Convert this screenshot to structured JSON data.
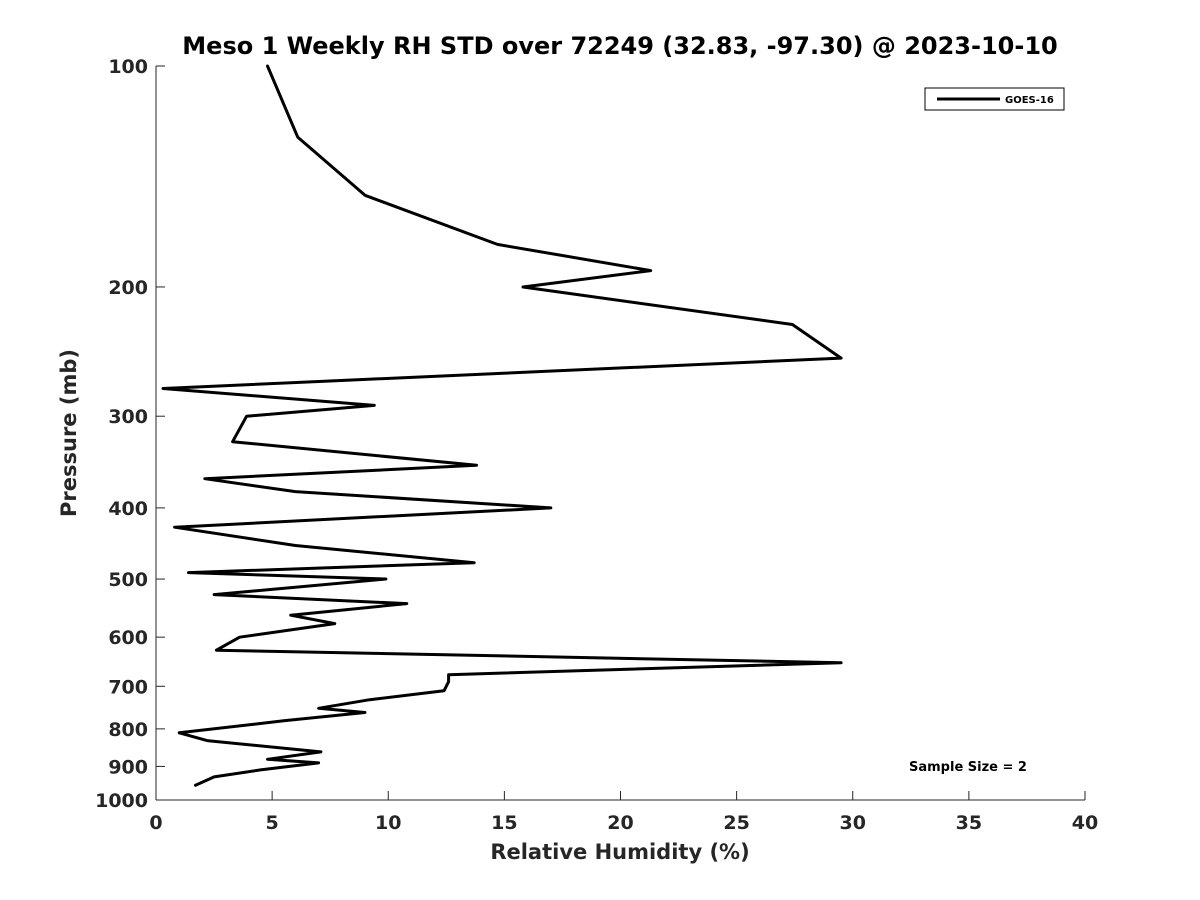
{
  "chart_data": {
    "type": "line",
    "title": "Meso 1 Weekly RH STD over 72249 (32.83, -97.30) @ 2023-10-10",
    "xlabel": "Relative Humidity (%)",
    "ylabel": "Pressure (mb)",
    "xlim": [
      0,
      40
    ],
    "ylim": [
      100,
      1000
    ],
    "y_scale": "log",
    "y_reversed": true,
    "xticks": [
      0,
      5,
      10,
      15,
      20,
      25,
      30,
      35,
      40
    ],
    "xtick_labels": [
      "0",
      "5",
      "10",
      "15",
      "20",
      "25",
      "30",
      "35",
      "40"
    ],
    "yticks": [
      100,
      200,
      300,
      400,
      500,
      600,
      700,
      800,
      900,
      1000
    ],
    "ytick_labels": [
      "100",
      "200",
      "300",
      "400",
      "500",
      "600",
      "700",
      "800",
      "900",
      "1000"
    ],
    "grid": false,
    "legend_position": "top-right",
    "annotation": "Sample Size = 2",
    "series": [
      {
        "name": "GOES-16",
        "color": "#000000",
        "points": [
          [
            4.8,
            100
          ],
          [
            6.1,
            125
          ],
          [
            9.0,
            150
          ],
          [
            14.7,
            175
          ],
          [
            21.3,
            190
          ],
          [
            15.8,
            200
          ],
          [
            27.4,
            225
          ],
          [
            29.5,
            250
          ],
          [
            0.3,
            275
          ],
          [
            9.4,
            290
          ],
          [
            3.9,
            300
          ],
          [
            3.3,
            325
          ],
          [
            13.8,
            350
          ],
          [
            2.1,
            365
          ],
          [
            6.0,
            380
          ],
          [
            17.0,
            400
          ],
          [
            0.8,
            425
          ],
          [
            6.0,
            450
          ],
          [
            13.7,
            475
          ],
          [
            1.4,
            490
          ],
          [
            9.9,
            500
          ],
          [
            2.5,
            525
          ],
          [
            10.8,
            540
          ],
          [
            5.8,
            560
          ],
          [
            7.7,
            575
          ],
          [
            3.6,
            600
          ],
          [
            2.6,
            625
          ],
          [
            29.5,
            650
          ],
          [
            12.6,
            675
          ],
          [
            12.6,
            690
          ],
          [
            12.4,
            710
          ],
          [
            9.2,
            730
          ],
          [
            7.0,
            750
          ],
          [
            9.0,
            760
          ],
          [
            5.5,
            780
          ],
          [
            1.0,
            810
          ],
          [
            2.2,
            830
          ],
          [
            7.1,
            860
          ],
          [
            4.8,
            880
          ],
          [
            7.0,
            890
          ],
          [
            4.5,
            910
          ],
          [
            2.5,
            930
          ],
          [
            1.7,
            955
          ]
        ]
      }
    ]
  }
}
